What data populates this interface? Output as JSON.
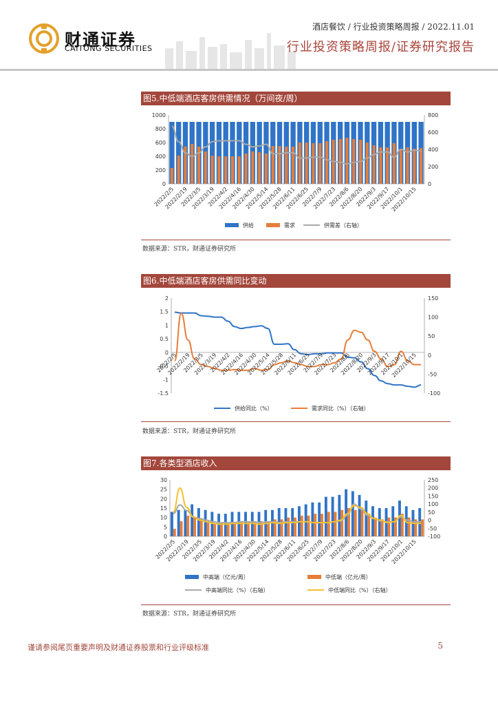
{
  "header": {
    "meta": "酒店餐饮 / 行业投资策略周报 / 2022.11.01",
    "report_title": "行业投资策略周报/证券研究报告",
    "logo_cn": "财通证券",
    "logo_en": "CAITONG SECURITIES"
  },
  "colors": {
    "blue": "#2f74c7",
    "orange": "#e67e3a",
    "grey": "#a9a9a9",
    "yellow": "#f2c12e",
    "accent": "#a3473c"
  },
  "figures": [
    {
      "title": "图5.中低端酒店客房供需情况（万间夜/周）",
      "source": "数据来源：STR，财通证券研究所"
    },
    {
      "title": "图6.中低端酒店客房供需同比变动",
      "source": "数据来源：STR，财通证券研究所"
    },
    {
      "title": "图7.各类型酒店收入",
      "source": "数据来源：STR，财通证券研究所"
    }
  ],
  "footer": {
    "disclaimer": "谨请参阅尾页重要声明及财通证券股票和行业评级标准",
    "page": "5"
  },
  "chart_data": [
    {
      "type": "bar",
      "title": "图5.中低端酒店客房供需情况（万间夜/周）",
      "categories": [
        "2022/2/5",
        "2022/2/12",
        "2022/2/19",
        "2022/2/26",
        "2022/3/5",
        "2022/3/12",
        "2022/3/19",
        "2022/3/26",
        "2022/4/2",
        "2022/4/9",
        "2022/4/16",
        "2022/4/23",
        "2022/4/30",
        "2022/5/7",
        "2022/5/14",
        "2022/5/21",
        "2022/5/28",
        "2022/6/4",
        "2022/6/11",
        "2022/6/18",
        "2022/6/25",
        "2022/7/2",
        "2022/7/9",
        "2022/7/16",
        "2022/7/23",
        "2022/7/30",
        "2022/8/6",
        "2022/8/13",
        "2022/8/20",
        "2022/8/27",
        "2022/9/3",
        "2022/9/10",
        "2022/9/17",
        "2022/9/24",
        "2022/10/1",
        "2022/10/8",
        "2022/10/15",
        "2022/10/22"
      ],
      "tick_labels": [
        "2022/2/5",
        "2022/2/19",
        "2022/3/5",
        "2022/3/19",
        "2022/4/2",
        "2022/4/16",
        "2022/4/30",
        "2022/5/14",
        "2022/5/28",
        "2022/6/11",
        "2022/6/25",
        "2022/7/9",
        "2022/7/23",
        "2022/8/6",
        "2022/8/20",
        "2022/9/3",
        "2022/9/17",
        "2022/10/1",
        "2022/10/15"
      ],
      "series": [
        {
          "name": "供给",
          "kind": "bar",
          "axis": "left",
          "values": [
            900,
            900,
            900,
            900,
            900,
            900,
            900,
            900,
            900,
            900,
            900,
            900,
            900,
            900,
            900,
            900,
            900,
            900,
            900,
            900,
            900,
            900,
            900,
            900,
            900,
            900,
            900,
            900,
            900,
            900,
            900,
            900,
            900,
            900,
            900,
            900,
            900,
            900
          ]
        },
        {
          "name": "需求",
          "kind": "bar",
          "axis": "left",
          "values": [
            230,
            410,
            540,
            580,
            540,
            470,
            410,
            400,
            400,
            400,
            400,
            440,
            470,
            460,
            440,
            550,
            550,
            540,
            540,
            600,
            600,
            590,
            590,
            620,
            640,
            650,
            670,
            650,
            640,
            600,
            560,
            530,
            530,
            590,
            500,
            530,
            510,
            520
          ]
        },
        {
          "name": "供需差（右轴）",
          "kind": "line",
          "axis": "right",
          "values": [
            670,
            490,
            360,
            320,
            360,
            430,
            490,
            500,
            500,
            500,
            500,
            460,
            430,
            440,
            460,
            350,
            350,
            360,
            360,
            300,
            300,
            310,
            310,
            280,
            260,
            250,
            230,
            250,
            260,
            300,
            340,
            370,
            370,
            310,
            400,
            370,
            390,
            380
          ]
        }
      ],
      "ylim": [
        0,
        1000
      ],
      "yticks": [
        0,
        200,
        400,
        600,
        800,
        1000
      ],
      "y2lim": [
        0,
        800
      ],
      "y2ticks": [
        0,
        200,
        400,
        600,
        800
      ]
    },
    {
      "type": "line",
      "title": "图6.中低端酒店客房供需同比变动",
      "categories": [
        "2022/2/5",
        "2022/2/12",
        "2022/2/19",
        "2022/2/26",
        "2022/3/5",
        "2022/3/12",
        "2022/3/19",
        "2022/3/26",
        "2022/4/2",
        "2022/4/9",
        "2022/4/16",
        "2022/4/23",
        "2022/4/30",
        "2022/5/7",
        "2022/5/14",
        "2022/5/21",
        "2022/5/28",
        "2022/6/4",
        "2022/6/11",
        "2022/6/18",
        "2022/6/25",
        "2022/7/2",
        "2022/7/9",
        "2022/7/16",
        "2022/7/23",
        "2022/7/30",
        "2022/8/6",
        "2022/8/13",
        "2022/8/20",
        "2022/8/27",
        "2022/9/3",
        "2022/9/10",
        "2022/9/17",
        "2022/9/24",
        "2022/10/1",
        "2022/10/8",
        "2022/10/15",
        "2022/10/22"
      ],
      "tick_labels": [
        "2022/2/5",
        "2022/2/19",
        "2022/3/5",
        "2022/3/19",
        "2022/4/2",
        "2022/4/16",
        "2022/4/30",
        "2022/5/14",
        "2022/5/28",
        "2022/6/11",
        "2022/6/25",
        "2022/7/9",
        "2022/7/23",
        "2022/8/6",
        "2022/8/20",
        "2022/9/3",
        "2022/9/17",
        "2022/10/1",
        "2022/10/15"
      ],
      "series": [
        {
          "name": "供给同比（%）",
          "axis": "left",
          "values": [
            1.48,
            1.45,
            1.45,
            1.45,
            1.35,
            1.33,
            1.3,
            1.3,
            1.15,
            0.95,
            0.88,
            0.92,
            0.95,
            0.98,
            0.88,
            0.3,
            0.3,
            0.32,
            0.1,
            -0.05,
            -0.08,
            -0.05,
            -0.05,
            -0.02,
            -0.02,
            -0.02,
            -0.18,
            -0.2,
            -0.35,
            -0.6,
            -0.85,
            -1.05,
            -1.15,
            -1.2,
            -1.2,
            -1.25,
            -1.28,
            -1.2
          ]
        },
        {
          "name": "需求同比（%）（右轴）",
          "axis": "right",
          "values": [
            -15,
            110,
            40,
            -10,
            -25,
            -30,
            -35,
            -40,
            -40,
            -38,
            -40,
            -40,
            -35,
            -40,
            -38,
            -25,
            -20,
            -15,
            -20,
            -25,
            -30,
            -30,
            -25,
            -25,
            -20,
            -10,
            40,
            65,
            60,
            40,
            10,
            -10,
            -30,
            -25,
            10,
            -15,
            -25,
            -25
          ]
        }
      ],
      "ylim": [
        -1.5,
        2
      ],
      "yticks": [
        -1.5,
        -1,
        -0.5,
        0,
        0.5,
        1,
        1.5,
        2
      ],
      "y2lim": [
        -100,
        150
      ],
      "y2ticks": [
        -100,
        -50,
        0,
        50,
        100,
        150
      ]
    },
    {
      "type": "bar",
      "title": "图7.各类型酒店收入",
      "categories": [
        "2022/2/5",
        "2022/2/12",
        "2022/2/19",
        "2022/2/26",
        "2022/3/5",
        "2022/3/12",
        "2022/3/19",
        "2022/3/26",
        "2022/4/2",
        "2022/4/9",
        "2022/4/16",
        "2022/4/23",
        "2022/4/30",
        "2022/5/7",
        "2022/5/14",
        "2022/5/21",
        "2022/5/28",
        "2022/6/4",
        "2022/6/11",
        "2022/6/18",
        "2022/6/25",
        "2022/7/2",
        "2022/7/9",
        "2022/7/16",
        "2022/7/23",
        "2022/7/30",
        "2022/8/6",
        "2022/8/13",
        "2022/8/20",
        "2022/8/27",
        "2022/9/3",
        "2022/9/10",
        "2022/9/17",
        "2022/9/24",
        "2022/10/1",
        "2022/10/8",
        "2022/10/15",
        "2022/10/22"
      ],
      "tick_labels": [
        "2022/2/5",
        "2022/2/19",
        "2022/3/5",
        "2022/3/19",
        "2022/4/2",
        "2022/4/16",
        "2022/4/30",
        "2022/5/14",
        "2022/5/28",
        "2022/6/11",
        "2022/6/25",
        "2022/7/9",
        "2022/7/23",
        "2022/8/6",
        "2022/8/20",
        "2022/9/3",
        "2022/9/17",
        "2022/10/1",
        "2022/10/15"
      ],
      "series": [
        {
          "name": "中高端（亿元/周）",
          "kind": "bar",
          "axis": "left",
          "values": [
            13,
            14,
            14,
            17,
            15,
            14,
            13,
            12,
            12,
            13,
            13,
            13,
            13,
            13,
            14,
            14,
            15,
            15,
            15,
            16,
            17,
            18,
            18,
            21,
            21,
            22,
            25,
            24,
            22,
            19,
            16,
            15,
            15,
            16,
            19,
            16,
            14,
            15
          ]
        },
        {
          "name": "中低端（亿元/周）",
          "kind": "bar",
          "axis": "left",
          "values": [
            4,
            8,
            11,
            10,
            9,
            8,
            7,
            7,
            7,
            7,
            8,
            8,
            8,
            8,
            8,
            9,
            9,
            10,
            10,
            11,
            11,
            12,
            12,
            13,
            13,
            14,
            15,
            14,
            14,
            12,
            10,
            9,
            10,
            10,
            12,
            10,
            9,
            9
          ]
        },
        {
          "name": "中高端同比（%）（右轴）",
          "kind": "line",
          "axis": "right",
          "values": [
            40,
            95,
            60,
            20,
            10,
            0,
            -10,
            -15,
            -15,
            -15,
            -10,
            -10,
            -10,
            -15,
            -10,
            -10,
            -15,
            -10,
            -10,
            -10,
            -10,
            -15,
            -15,
            -15,
            -10,
            -5,
            30,
            100,
            70,
            30,
            10,
            -5,
            -10,
            -10,
            20,
            0,
            -10,
            -10
          ]
        },
        {
          "name": "中低端同比（%）（右轴）",
          "kind": "line",
          "axis": "right",
          "values": [
            50,
            200,
            80,
            20,
            0,
            -10,
            -20,
            -25,
            -25,
            -20,
            -20,
            -20,
            -20,
            -25,
            -20,
            -15,
            -20,
            -15,
            -15,
            -10,
            -10,
            -15,
            -15,
            -15,
            -10,
            0,
            40,
            90,
            80,
            40,
            10,
            0,
            -15,
            -10,
            30,
            -15,
            -20,
            -20
          ]
        }
      ],
      "ylim": [
        0,
        30
      ],
      "yticks": [
        0,
        5,
        10,
        15,
        20,
        25,
        30
      ],
      "y2lim": [
        -100,
        250
      ],
      "y2ticks": [
        -100,
        -50,
        0,
        50,
        100,
        150,
        200,
        250
      ]
    }
  ]
}
